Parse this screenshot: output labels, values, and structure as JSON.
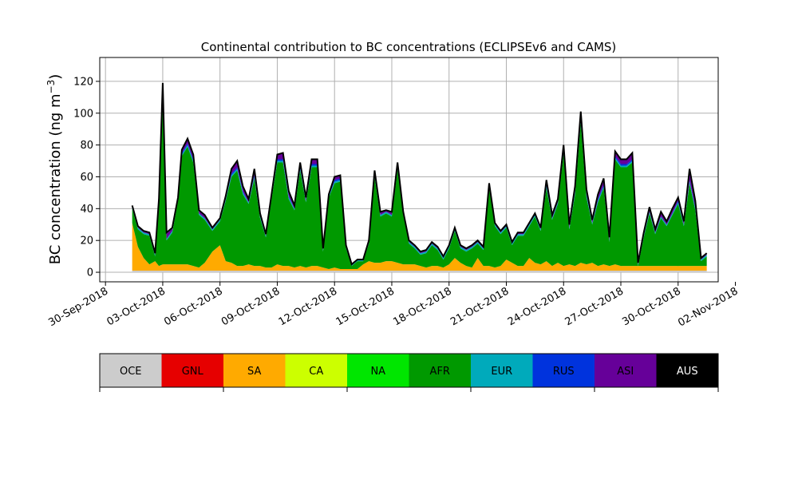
{
  "chart_data": {
    "type": "area",
    "title": "Continental contribution to BC concentrations (ECLIPSEv6 and CAMS)",
    "ylabel": "BC concentration (ng m",
    "ylabel_sup": "−3",
    "ylabel_close": ")",
    "xlabel": "",
    "xlim": [
      -0.3,
      32.1
    ],
    "ylim": [
      -6,
      135
    ],
    "grid": true,
    "stacked": true,
    "yticks": [
      0,
      20,
      40,
      60,
      80,
      100,
      120
    ],
    "xticks": [
      {
        "t": 0,
        "label": "30-Sep-2018"
      },
      {
        "t": 3,
        "label": "03-Oct-2018"
      },
      {
        "t": 6,
        "label": "06-Oct-2018"
      },
      {
        "t": 9,
        "label": "09-Oct-2018"
      },
      {
        "t": 12,
        "label": "12-Oct-2018"
      },
      {
        "t": 15,
        "label": "15-Oct-2018"
      },
      {
        "t": 18,
        "label": "18-Oct-2018"
      },
      {
        "t": 21,
        "label": "21-Oct-2018"
      },
      {
        "t": 24,
        "label": "24-Oct-2018"
      },
      {
        "t": 27,
        "label": "27-Oct-2018"
      },
      {
        "t": 30,
        "label": "30-Oct-2018"
      },
      {
        "t": 33,
        "label": "02-Nov-2018"
      }
    ],
    "x_units": "days since 30-Sep-2018",
    "x": [
      1.4,
      1.7,
      2.0,
      2.3,
      2.6,
      2.8,
      3.0,
      3.2,
      3.5,
      3.8,
      4.0,
      4.3,
      4.6,
      4.9,
      5.2,
      5.6,
      6.0,
      6.3,
      6.6,
      6.9,
      7.2,
      7.5,
      7.8,
      8.1,
      8.4,
      8.7,
      9.0,
      9.3,
      9.6,
      9.9,
      10.2,
      10.5,
      10.8,
      11.1,
      11.4,
      11.7,
      12.0,
      12.3,
      12.6,
      12.9,
      13.2,
      13.5,
      13.8,
      14.1,
      14.4,
      14.7,
      15.0,
      15.3,
      15.6,
      15.9,
      16.2,
      16.5,
      16.8,
      17.1,
      17.4,
      17.7,
      18.0,
      18.3,
      18.6,
      18.9,
      19.2,
      19.5,
      19.8,
      20.1,
      20.4,
      20.7,
      21.0,
      21.3,
      21.6,
      21.9,
      22.2,
      22.5,
      22.8,
      23.1,
      23.4,
      23.7,
      24.0,
      24.3,
      24.6,
      24.9,
      25.2,
      25.5,
      25.8,
      26.1,
      26.4,
      26.7,
      27.0,
      27.3,
      27.6,
      27.9,
      28.2,
      28.5,
      28.8,
      29.1,
      29.4,
      29.7,
      30.0,
      30.3,
      30.6,
      30.9,
      31.2,
      31.5
    ],
    "series": [
      {
        "name": "OCE",
        "color": "#cccccc",
        "values": [
          1,
          1,
          1,
          1,
          1,
          1,
          1,
          1,
          1,
          1,
          1,
          1,
          1,
          1,
          1,
          1,
          1,
          1,
          1,
          1,
          1,
          1,
          1,
          1,
          1,
          1,
          1,
          1,
          1,
          1,
          1,
          1,
          1,
          1,
          1,
          1,
          1,
          1,
          1,
          1,
          1,
          1,
          1,
          1,
          1,
          1,
          1,
          1,
          1,
          1,
          1,
          1,
          1,
          1,
          1,
          1,
          1,
          1,
          1,
          1,
          1,
          1,
          1,
          1,
          1,
          1,
          1,
          1,
          1,
          1,
          1,
          1,
          1,
          1,
          1,
          1,
          1,
          1,
          1,
          1,
          1,
          1,
          1,
          1,
          1,
          1,
          1,
          1,
          1,
          1,
          1,
          1,
          1,
          1,
          1,
          1,
          1,
          1,
          1,
          1,
          1,
          1
        ]
      },
      {
        "name": "GNL",
        "color": "#e60000",
        "values": [
          0,
          0,
          0,
          0,
          0,
          0,
          0,
          0,
          0,
          0,
          0,
          0,
          0,
          0,
          0,
          0,
          0,
          0,
          0,
          0,
          0,
          0,
          0,
          0,
          0,
          0,
          0,
          0,
          0,
          0,
          0,
          0,
          0,
          0,
          0,
          0,
          0,
          0,
          0,
          0,
          0,
          0,
          0,
          0,
          0,
          0,
          0,
          0,
          0,
          0,
          0,
          0,
          0,
          0,
          0,
          0,
          0,
          0,
          0,
          0,
          0,
          0,
          0,
          0,
          0,
          0,
          0,
          0,
          0,
          0,
          0,
          0,
          0,
          0,
          0,
          0,
          0,
          0,
          0,
          0,
          0,
          0,
          0,
          0,
          0,
          0,
          0,
          0,
          0,
          0,
          0,
          0,
          0,
          0,
          0,
          0,
          0,
          0,
          0,
          0,
          0,
          0
        ]
      },
      {
        "name": "SA",
        "color": "#ffaa00",
        "values": [
          30,
          15,
          8,
          4,
          6,
          3,
          4,
          4,
          4,
          4,
          4,
          4,
          3,
          2,
          5,
          12,
          16,
          6,
          5,
          3,
          3,
          4,
          3,
          3,
          2,
          2,
          4,
          3,
          3,
          2,
          3,
          2,
          3,
          3,
          2,
          1,
          2,
          1,
          1,
          1,
          1,
          4,
          6,
          5,
          5,
          6,
          6,
          5,
          4,
          4,
          4,
          3,
          2,
          3,
          3,
          2,
          4,
          8,
          5,
          3,
          2,
          8,
          3,
          3,
          2,
          3,
          7,
          5,
          3,
          3,
          8,
          5,
          4,
          6,
          3,
          5,
          3,
          4,
          3,
          5,
          4,
          5,
          3,
          4,
          3,
          4,
          3,
          3,
          3,
          3,
          3,
          3,
          3,
          3,
          3,
          3,
          3,
          3,
          3,
          3,
          3,
          3
        ]
      },
      {
        "name": "CA",
        "color": "#ccff00",
        "values": [
          0,
          0,
          0,
          0,
          0,
          0,
          0,
          0,
          0,
          0,
          0,
          0,
          0,
          0,
          0,
          0,
          0,
          0,
          0,
          0,
          0,
          0,
          0,
          0,
          0,
          0,
          0,
          0,
          0,
          0,
          0,
          0,
          0,
          0,
          0,
          0,
          0,
          0,
          0,
          0,
          0,
          0,
          0,
          0,
          0,
          0,
          0,
          0,
          0,
          0,
          0,
          0,
          0,
          0,
          0,
          0,
          0,
          0,
          0,
          0,
          0,
          0,
          0,
          0,
          0,
          0,
          0,
          0,
          0,
          0,
          0,
          0,
          0,
          0,
          0,
          0,
          0,
          0,
          0,
          0,
          0,
          0,
          0,
          0,
          0,
          0,
          0,
          0,
          0,
          0,
          0,
          0,
          0,
          0,
          0,
          0,
          0,
          0,
          0,
          0,
          0,
          0
        ]
      },
      {
        "name": "NA",
        "color": "#00e600",
        "values": [
          0,
          0,
          0,
          0,
          0,
          0,
          0,
          0,
          0,
          0,
          0,
          0,
          0,
          0,
          0,
          0,
          0,
          0,
          0,
          0,
          0,
          0,
          0,
          0,
          0,
          0,
          0,
          0,
          0,
          0,
          0,
          0,
          0,
          0,
          0,
          0,
          0,
          0,
          0,
          0,
          0,
          0,
          0,
          0,
          0,
          0,
          0,
          0,
          0,
          0,
          0,
          0,
          0,
          0,
          0,
          0,
          0,
          0,
          0,
          0,
          0,
          0,
          0,
          0,
          0,
          0,
          0,
          0,
          0,
          0,
          0,
          0,
          0,
          0,
          0,
          0,
          0,
          0,
          0,
          0,
          0,
          0,
          0,
          0,
          0,
          0,
          0,
          0,
          0,
          0,
          0,
          0,
          0,
          0,
          0,
          0,
          0,
          0,
          0,
          0,
          0,
          0
        ]
      },
      {
        "name": "AFR",
        "color": "#009900",
        "values": [
          9,
          11,
          15,
          18,
          3,
          40,
          110,
          15,
          20,
          40,
          68,
          74,
          65,
          33,
          27,
          13,
          15,
          38,
          54,
          60,
          45,
          38,
          55,
          30,
          19,
          43,
          64,
          65,
          42,
          36,
          60,
          41,
          62,
          62,
          10,
          45,
          53,
          55,
          13,
          2,
          5,
          2,
          11,
          54,
          29,
          30,
          28,
          59,
          31,
          13,
          10,
          7,
          9,
          13,
          10,
          5,
          10,
          17,
          9,
          9,
          12,
          9,
          10,
          49,
          26,
          20,
          20,
          11,
          19,
          19,
          20,
          29,
          21,
          46,
          29,
          37,
          71,
          22,
          45,
          88,
          42,
          24,
          40,
          48,
          15,
          66,
          62,
          62,
          65,
          0,
          18,
          33,
          20,
          30,
          25,
          32,
          39,
          25,
          52,
          35,
          3,
          6
        ]
      },
      {
        "name": "EUR",
        "color": "#00aabb",
        "values": [
          1,
          1,
          1,
          1,
          1,
          1,
          1,
          1,
          1,
          1,
          1,
          1,
          1,
          1,
          1,
          1,
          1,
          1,
          1,
          1,
          1,
          1,
          1,
          1,
          1,
          1,
          1,
          1,
          1,
          1,
          1,
          1,
          1,
          1,
          1,
          1,
          1,
          1,
          1,
          1,
          1,
          1,
          1,
          1,
          1,
          1,
          1,
          1,
          1,
          1,
          1,
          1,
          1,
          1,
          1,
          1,
          1,
          1,
          1,
          1,
          1,
          1,
          1,
          1,
          1,
          1,
          1,
          1,
          1,
          1,
          1,
          1,
          1,
          1,
          1,
          1,
          1,
          1,
          1,
          1,
          1,
          1,
          1,
          1,
          1,
          1,
          1,
          1,
          1,
          1,
          1,
          1,
          1,
          1,
          1,
          1,
          1,
          1,
          1,
          1,
          1,
          1
        ]
      },
      {
        "name": "RUS",
        "color": "#0033dd",
        "values": [
          0,
          0,
          0,
          0,
          0,
          0,
          1,
          0,
          0,
          0,
          1,
          1,
          1,
          0,
          0,
          0,
          0,
          0,
          1,
          1,
          1,
          0,
          1,
          0,
          0,
          0,
          1,
          1,
          1,
          0,
          1,
          0,
          1,
          1,
          0,
          0,
          1,
          1,
          0,
          0,
          0,
          0,
          0,
          1,
          0,
          0,
          0,
          1,
          0,
          0,
          0,
          0,
          0,
          0,
          0,
          0,
          0,
          0,
          0,
          0,
          0,
          0,
          0,
          0,
          0,
          0,
          0,
          0,
          0,
          0,
          0,
          0,
          0,
          1,
          0,
          0,
          1,
          0,
          1,
          1,
          1,
          0,
          1,
          1,
          0,
          1,
          1,
          1,
          1,
          0,
          0,
          0,
          0,
          0,
          0,
          0,
          1,
          0,
          1,
          1,
          0,
          0
        ]
      },
      {
        "name": "ASI",
        "color": "#660099",
        "values": [
          1,
          1,
          1,
          1,
          1,
          1,
          2,
          4,
          2,
          1,
          2,
          3,
          3,
          2,
          2,
          1,
          1,
          2,
          3,
          4,
          3,
          2,
          4,
          2,
          1,
          2,
          3,
          4,
          3,
          2,
          3,
          2,
          3,
          3,
          1,
          1,
          2,
          2,
          1,
          0,
          0,
          0,
          1,
          2,
          2,
          1,
          2,
          2,
          1,
          1,
          1,
          1,
          1,
          1,
          1,
          1,
          1,
          1,
          1,
          1,
          1,
          1,
          1,
          2,
          1,
          1,
          1,
          1,
          1,
          1,
          1,
          1,
          1,
          3,
          2,
          2,
          3,
          2,
          3,
          5,
          3,
          2,
          3,
          4,
          2,
          3,
          3,
          3,
          4,
          1,
          2,
          3,
          2,
          3,
          2,
          3,
          2,
          2,
          7,
          4,
          1,
          1
        ]
      },
      {
        "name": "AUS",
        "color": "#000000",
        "values": [
          0,
          0,
          0,
          0,
          0,
          0,
          0,
          0,
          0,
          0,
          0,
          0,
          0,
          0,
          0,
          0,
          0,
          0,
          0,
          0,
          0,
          0,
          0,
          0,
          0,
          0,
          0,
          0,
          0,
          0,
          0,
          0,
          0,
          0,
          0,
          0,
          0,
          0,
          0,
          0,
          0,
          0,
          0,
          0,
          0,
          0,
          0,
          0,
          0,
          0,
          0,
          0,
          0,
          0,
          0,
          0,
          0,
          0,
          0,
          0,
          0,
          0,
          0,
          0,
          0,
          0,
          0,
          0,
          0,
          0,
          0,
          0,
          0,
          0,
          0,
          0,
          0,
          0,
          0,
          0,
          0,
          0,
          0,
          0,
          0,
          0,
          0,
          0,
          0,
          0,
          0,
          0,
          0,
          0,
          0,
          0,
          0,
          0,
          0,
          0,
          0,
          0
        ]
      }
    ],
    "legend": {
      "placement": "bottom",
      "entries": [
        {
          "name": "OCE",
          "color": "#cccccc",
          "text_color": "#000000"
        },
        {
          "name": "GNL",
          "color": "#e60000",
          "text_color": "#000000"
        },
        {
          "name": "SA",
          "color": "#ffaa00",
          "text_color": "#000000"
        },
        {
          "name": "CA",
          "color": "#ccff00",
          "text_color": "#000000"
        },
        {
          "name": "NA",
          "color": "#00e600",
          "text_color": "#000000"
        },
        {
          "name": "AFR",
          "color": "#009900",
          "text_color": "#000000"
        },
        {
          "name": "EUR",
          "color": "#00aabb",
          "text_color": "#000000"
        },
        {
          "name": "RUS",
          "color": "#0033dd",
          "text_color": "#000000"
        },
        {
          "name": "ASI",
          "color": "#660099",
          "text_color": "#000000"
        },
        {
          "name": "AUS",
          "color": "#000000",
          "text_color": "#ffffff"
        }
      ]
    }
  }
}
